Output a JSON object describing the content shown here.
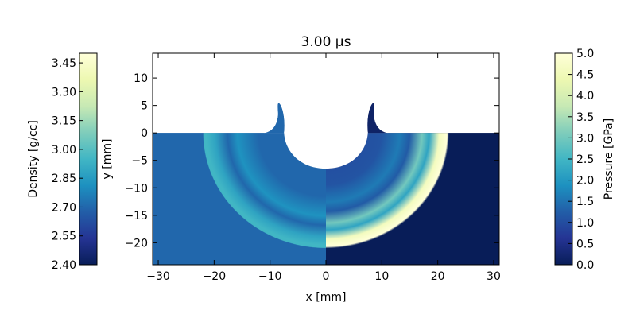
{
  "chart_data": {
    "type": "heatmap",
    "title": "3.00 μs",
    "xlabel": "x [mm]",
    "ylabel": "y [mm]",
    "xlim": [
      -31,
      31
    ],
    "ylim": [
      -24,
      14.5
    ],
    "xticks": [
      -30,
      -20,
      -10,
      0,
      10,
      20,
      30
    ],
    "yticks": [
      -20,
      -15,
      -10,
      -5,
      0,
      5,
      10
    ],
    "grid": false,
    "left_field": {
      "name": "Density",
      "colorbar_label": "Density [g/cc]",
      "range": [
        2.4,
        3.5
      ],
      "ticks": [
        "2.40",
        "2.55",
        "2.70",
        "2.85",
        "3.00",
        "3.15",
        "3.30",
        "3.45"
      ],
      "background_value": 2.7,
      "shock_peak_value": 2.95
    },
    "right_field": {
      "name": "Pressure",
      "colorbar_label": "Pressure [GPa]",
      "range": [
        0.0,
        5.0
      ],
      "ticks": [
        "0.0",
        "0.5",
        "1.0",
        "1.5",
        "2.0",
        "2.5",
        "3.0",
        "3.5",
        "4.0",
        "4.5",
        "5.0"
      ],
      "background_value": 0.0,
      "shock_peak_value": 5.0
    },
    "crater": {
      "center_x": 0,
      "half_width_at_surface": 7.5,
      "depth": 6.5,
      "lip_tip": [
        8.5,
        5.5
      ]
    },
    "shock_front": {
      "radius_down": 21,
      "radius_side": 22
    },
    "colormap": [
      "#081d58",
      "#253494",
      "#225ea8",
      "#1d91c0",
      "#41b6c4",
      "#7fcdbb",
      "#c7e9b4",
      "#edf8b1",
      "#ffffd9"
    ]
  }
}
